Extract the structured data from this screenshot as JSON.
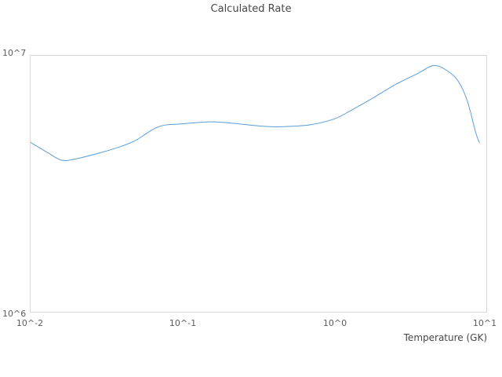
{
  "title": "Calculated Rate",
  "colors": {
    "line": "#5b9dd8",
    "plot_border": "#d8d8d8",
    "title_text": "#474747",
    "tick_text": "#5c5c5c"
  },
  "axes": {
    "x": {
      "label": "Temperature (GK)",
      "ticks": [
        "10^-2",
        "10^-1",
        "10^0",
        "10^1"
      ],
      "scale": "log"
    },
    "y": {
      "ticks": [
        "10^6",
        "10^7"
      ],
      "scale": "log"
    }
  },
  "chart_data": {
    "type": "line",
    "title": "Calculated Rate",
    "xlabel": "Temperature (GK)",
    "ylabel": "",
    "x_scale": "log",
    "y_scale": "log",
    "xlim": [
      0.01,
      10
    ],
    "ylim": [
      1000000,
      10000000
    ],
    "grid": false,
    "legend": false,
    "series": [
      {
        "name": "calculated-rate",
        "x": [
          0.01,
          0.013,
          0.016,
          0.02,
          0.03,
          0.04,
          0.05,
          0.07,
          0.1,
          0.15,
          0.2,
          0.3,
          0.4,
          0.5,
          0.7,
          1.0,
          1.3,
          1.8,
          2.5,
          3.5,
          4.5,
          5.5,
          6.5,
          7.5,
          8.5,
          9.0
        ],
        "y": [
          4590000,
          4180000,
          3910000,
          3960000,
          4210000,
          4440000,
          4700000,
          5290000,
          5420000,
          5520000,
          5470000,
          5340000,
          5280000,
          5300000,
          5380000,
          5670000,
          6140000,
          6850000,
          7700000,
          8500000,
          9160000,
          8760000,
          7990000,
          6660000,
          5030000,
          4590000
        ]
      }
    ]
  }
}
